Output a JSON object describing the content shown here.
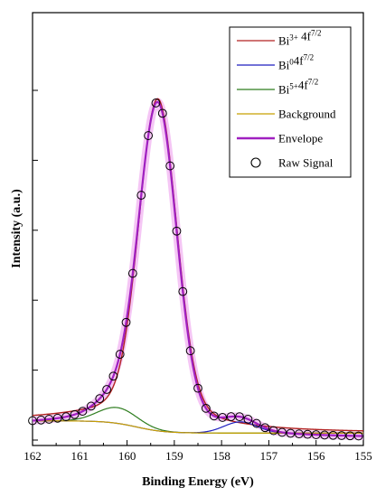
{
  "chart_data": {
    "type": "line",
    "xlabel": "Binding Energy (eV)",
    "ylabel": "Intensity (a.u.)",
    "xlim": [
      162,
      155
    ],
    "x_reversed": true,
    "xticks": [
      162,
      161,
      160,
      159,
      158,
      157,
      156,
      155
    ],
    "xtick_labels": [
      "162",
      "161",
      "160",
      "159",
      "158",
      "157",
      "156",
      "155"
    ],
    "ylim": [
      0,
      100
    ],
    "y_tick_labels_shown": false,
    "grid": false,
    "legend_position": "top-right",
    "legend": [
      {
        "key": "bi3",
        "base": "Bi",
        "sup": "3+",
        "mid": " 4f",
        "sup2": "7/2"
      },
      {
        "key": "bi0",
        "base": "Bi",
        "sup": "0",
        "mid": "4f",
        "sup2": "7/2"
      },
      {
        "key": "bi5",
        "base": "Bi",
        "sup": "5+",
        "mid": "4f",
        "sup2": "7/2"
      },
      {
        "key": "background",
        "base": "Background"
      },
      {
        "key": "envelope",
        "base": "Envelope"
      },
      {
        "key": "raw",
        "base": "Raw Signal"
      }
    ],
    "colors": {
      "bi3": "#b22222",
      "bi0": "#1f1fbf",
      "bi5": "#2e7d1f",
      "background": "#c8a000",
      "envelope": "#a020c0",
      "envelope_glow": "#f2b8f2",
      "raw": "#000000"
    },
    "background_fit": {
      "low": 2.0,
      "high": 5.5,
      "center": 159.8,
      "width": 0.3
    },
    "components": [
      {
        "key": "bi3",
        "name": "Bi3+ 4f7/2",
        "center": 159.35,
        "amplitude": 96.0,
        "sigma": 0.39,
        "gamma": 0.11
      },
      {
        "key": "bi5",
        "name": "Bi5+4f7/2",
        "center": 160.2,
        "amplitude": 4.5,
        "sigma": 0.42,
        "gamma": 0.0
      },
      {
        "key": "bi0",
        "name": "Bi0 4f7/2",
        "center": 157.6,
        "amplitude": 3.2,
        "sigma": 0.35,
        "gamma": 0.0
      }
    ],
    "raw_x": [
      162.0,
      161.82,
      161.65,
      161.47,
      161.29,
      161.11,
      160.94,
      160.76,
      160.58,
      160.43,
      160.29,
      160.15,
      160.02,
      159.88,
      159.7,
      159.55,
      159.39,
      159.25,
      159.09,
      158.95,
      158.82,
      158.66,
      158.5,
      158.33,
      158.16,
      157.98,
      157.8,
      157.62,
      157.44,
      157.26,
      157.08,
      156.9,
      156.72,
      156.54,
      156.36,
      156.18,
      156.0,
      155.82,
      155.64,
      155.46,
      155.28,
      155.1
    ]
  }
}
